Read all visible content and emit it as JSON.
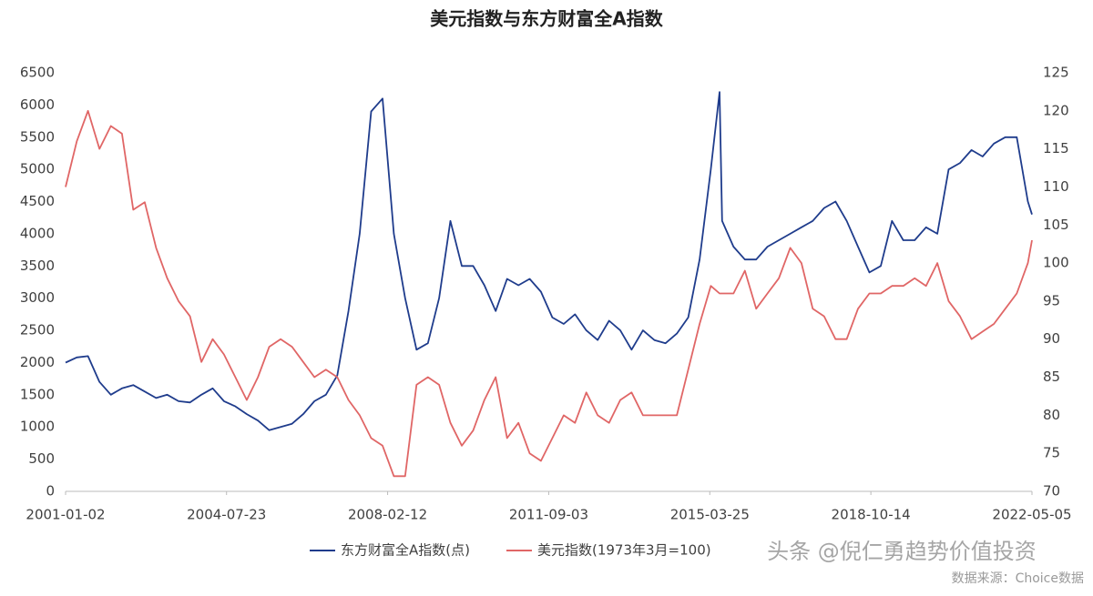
{
  "chart_data": {
    "type": "line",
    "title": "美元指数与东方财富全A指数",
    "x": [
      "2001-01-02",
      "2001-04-02",
      "2001-07-02",
      "2001-10-02",
      "2002-01-02",
      "2002-04-02",
      "2002-07-02",
      "2002-10-02",
      "2003-01-02",
      "2003-04-02",
      "2003-07-02",
      "2003-10-02",
      "2004-01-02",
      "2004-04-02",
      "2004-07-02",
      "2004-10-02",
      "2005-01-02",
      "2005-04-02",
      "2005-07-02",
      "2005-10-02",
      "2006-01-02",
      "2006-04-02",
      "2006-07-02",
      "2006-10-02",
      "2007-01-02",
      "2007-04-02",
      "2007-07-02",
      "2007-10-02",
      "2008-01-02",
      "2008-04-02",
      "2008-07-02",
      "2008-10-02",
      "2009-01-02",
      "2009-04-02",
      "2009-07-02",
      "2009-10-02",
      "2010-01-02",
      "2010-04-02",
      "2010-07-02",
      "2010-10-02",
      "2011-01-02",
      "2011-04-02",
      "2011-07-02",
      "2011-10-02",
      "2012-01-02",
      "2012-04-02",
      "2012-07-02",
      "2012-10-02",
      "2013-01-02",
      "2013-04-02",
      "2013-07-02",
      "2013-10-02",
      "2014-01-02",
      "2014-04-02",
      "2014-07-02",
      "2014-10-02",
      "2015-01-02",
      "2015-04-02",
      "2015-06-12",
      "2015-07-02",
      "2015-10-02",
      "2016-01-02",
      "2016-04-02",
      "2016-07-02",
      "2016-10-02",
      "2017-01-02",
      "2017-04-02",
      "2017-07-02",
      "2017-10-02",
      "2018-01-02",
      "2018-04-02",
      "2018-07-02",
      "2018-10-02",
      "2019-01-02",
      "2019-04-02",
      "2019-07-02",
      "2019-10-02",
      "2020-01-02",
      "2020-04-02",
      "2020-07-02",
      "2020-10-02",
      "2021-01-02",
      "2021-04-02",
      "2021-07-02",
      "2021-10-02",
      "2022-01-02",
      "2022-04-02",
      "2022-05-05"
    ],
    "series": [
      {
        "name": "东方财富全A指数(点)",
        "color": "#1f3c8c",
        "values": [
          2000,
          2080,
          2100,
          1700,
          1500,
          1600,
          1650,
          1550,
          1450,
          1500,
          1400,
          1380,
          1500,
          1600,
          1400,
          1320,
          1200,
          1100,
          950,
          1000,
          1050,
          1200,
          1400,
          1500,
          1800,
          2800,
          4000,
          5900,
          6100,
          4000,
          3000,
          2200,
          2300,
          3000,
          4200,
          3500,
          3500,
          3200,
          2800,
          3300,
          3200,
          3300,
          3100,
          2700,
          2600,
          2750,
          2500,
          2350,
          2650,
          2500,
          2200,
          2500,
          2350,
          2300,
          2450,
          2700,
          3600,
          5000,
          6200,
          4200,
          3800,
          3600,
          3600,
          3800,
          3900,
          4000,
          4100,
          4200,
          4400,
          4500,
          4200,
          3800,
          3400,
          3500,
          4200,
          3900,
          3900,
          4100,
          4000,
          5000,
          5100,
          5300,
          5200,
          5400,
          5500,
          5500,
          4500,
          4300
        ]
      },
      {
        "name": "美元指数(1973年3月=100)",
        "color": "#e06666",
        "axis": "y2",
        "values": [
          110,
          116,
          120,
          115,
          118,
          117,
          107,
          108,
          102,
          98,
          95,
          93,
          87,
          90,
          88,
          85,
          82,
          85,
          89,
          90,
          89,
          87,
          85,
          86,
          85,
          82,
          80,
          77,
          76,
          72,
          72,
          84,
          85,
          84,
          79,
          76,
          78,
          82,
          85,
          77,
          79,
          75,
          74,
          77,
          80,
          79,
          83,
          80,
          79,
          82,
          83,
          80,
          80,
          80,
          80,
          86,
          92,
          97,
          96,
          96,
          96,
          99,
          94,
          96,
          98,
          102,
          100,
          94,
          93,
          90,
          90,
          94,
          96,
          96,
          97,
          97,
          98,
          97,
          100,
          95,
          93,
          90,
          91,
          92,
          94,
          96,
          100,
          103
        ]
      }
    ],
    "xlim": [
      "2001-01-02",
      "2022-05-05"
    ],
    "xticks": [
      "2001-01-02",
      "2004-07-23",
      "2008-02-12",
      "2011-09-03",
      "2015-03-25",
      "2018-10-14",
      "2022-05-05"
    ],
    "ylim": [
      0,
      6500
    ],
    "yticks": [
      0,
      500,
      1000,
      1500,
      2000,
      2500,
      3000,
      3500,
      4000,
      4500,
      5000,
      5500,
      6000,
      6500
    ],
    "y2lim": [
      70,
      125
    ],
    "y2ticks": [
      70,
      75,
      80,
      85,
      90,
      95,
      100,
      105,
      110,
      115,
      120,
      125
    ],
    "grid": false,
    "legend": "bottom",
    "watermark": "头条 @倪仁勇趋势价值投资",
    "source": "数据来源：Choice数据"
  }
}
